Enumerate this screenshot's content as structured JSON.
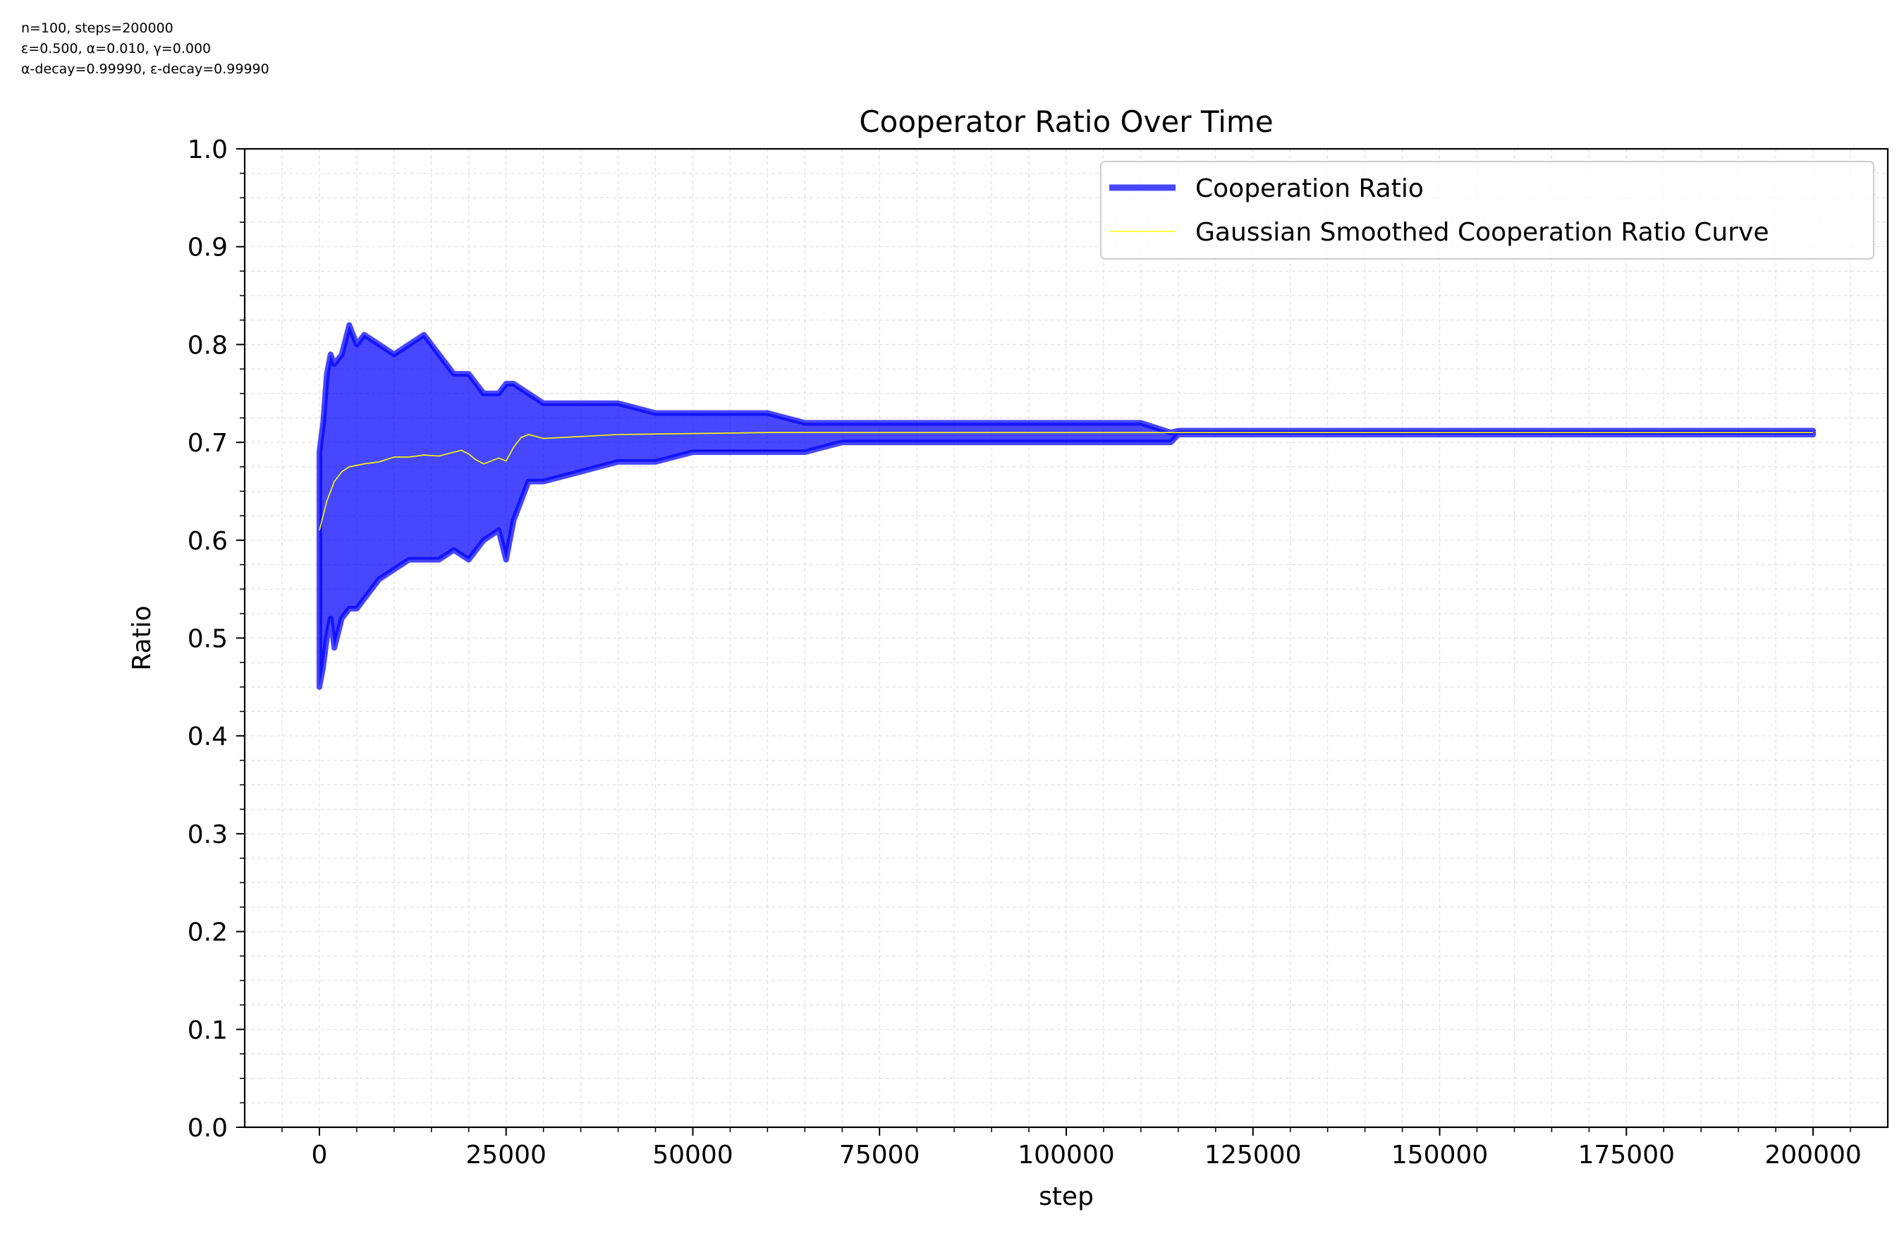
{
  "info_lines": [
    "n=100, steps=200000",
    "ε=0.500, α=0.010, γ=0.000",
    "α-decay=0.99990, ε-decay=0.99990"
  ],
  "chart_data": {
    "type": "line",
    "title": "Cooperator Ratio Over Time",
    "xlabel": "step",
    "ylabel": "Ratio",
    "xlim": [
      -10000,
      210000
    ],
    "ylim": [
      0.0,
      1.0
    ],
    "xticks": [
      0,
      25000,
      50000,
      75000,
      100000,
      125000,
      150000,
      175000,
      200000
    ],
    "yticks": [
      0.0,
      0.1,
      0.2,
      0.3,
      0.4,
      0.5,
      0.6,
      0.7,
      0.8,
      0.9,
      1.0
    ],
    "grid": true,
    "legend": "top-right",
    "series": [
      {
        "name": "Cooperation Ratio",
        "color": "#0000ff",
        "style": "band",
        "x": [
          0,
          500,
          1000,
          1500,
          2000,
          3000,
          4000,
          5000,
          6000,
          8000,
          10000,
          12000,
          14000,
          16000,
          18000,
          20000,
          22000,
          24000,
          25000,
          26000,
          28000,
          30000,
          35000,
          40000,
          45000,
          50000,
          55000,
          60000,
          65000,
          70000,
          75000,
          80000,
          85000,
          90000,
          95000,
          100000,
          105000,
          110000,
          114000,
          115000,
          200000
        ],
        "upper": [
          0.69,
          0.72,
          0.77,
          0.79,
          0.78,
          0.79,
          0.82,
          0.8,
          0.81,
          0.8,
          0.79,
          0.8,
          0.81,
          0.79,
          0.77,
          0.77,
          0.75,
          0.75,
          0.76,
          0.76,
          0.75,
          0.74,
          0.74,
          0.74,
          0.73,
          0.73,
          0.73,
          0.73,
          0.72,
          0.72,
          0.72,
          0.72,
          0.72,
          0.72,
          0.72,
          0.72,
          0.72,
          0.72,
          0.71,
          0.712,
          0.712
        ],
        "lower": [
          0.45,
          0.47,
          0.5,
          0.52,
          0.49,
          0.52,
          0.53,
          0.53,
          0.54,
          0.56,
          0.57,
          0.58,
          0.58,
          0.58,
          0.59,
          0.58,
          0.6,
          0.61,
          0.58,
          0.62,
          0.66,
          0.66,
          0.67,
          0.68,
          0.68,
          0.69,
          0.69,
          0.69,
          0.69,
          0.7,
          0.7,
          0.7,
          0.7,
          0.7,
          0.7,
          0.7,
          0.7,
          0.7,
          0.7,
          0.708,
          0.708
        ]
      },
      {
        "name": "Gaussian Smoothed Cooperation Ratio Curve",
        "color": "#ffff00",
        "x": [
          0,
          1000,
          2000,
          3000,
          4000,
          6000,
          8000,
          10000,
          12000,
          14000,
          16000,
          18000,
          19000,
          20000,
          21000,
          22000,
          24000,
          25000,
          26000,
          27000,
          28000,
          30000,
          35000,
          40000,
          50000,
          60000,
          70000,
          80000,
          100000,
          150000,
          200000
        ],
        "values": [
          0.61,
          0.64,
          0.66,
          0.67,
          0.675,
          0.678,
          0.68,
          0.685,
          0.685,
          0.687,
          0.686,
          0.69,
          0.692,
          0.688,
          0.682,
          0.678,
          0.684,
          0.681,
          0.695,
          0.705,
          0.708,
          0.704,
          0.706,
          0.708,
          0.709,
          0.71,
          0.71,
          0.71,
          0.71,
          0.71,
          0.71
        ]
      }
    ]
  }
}
